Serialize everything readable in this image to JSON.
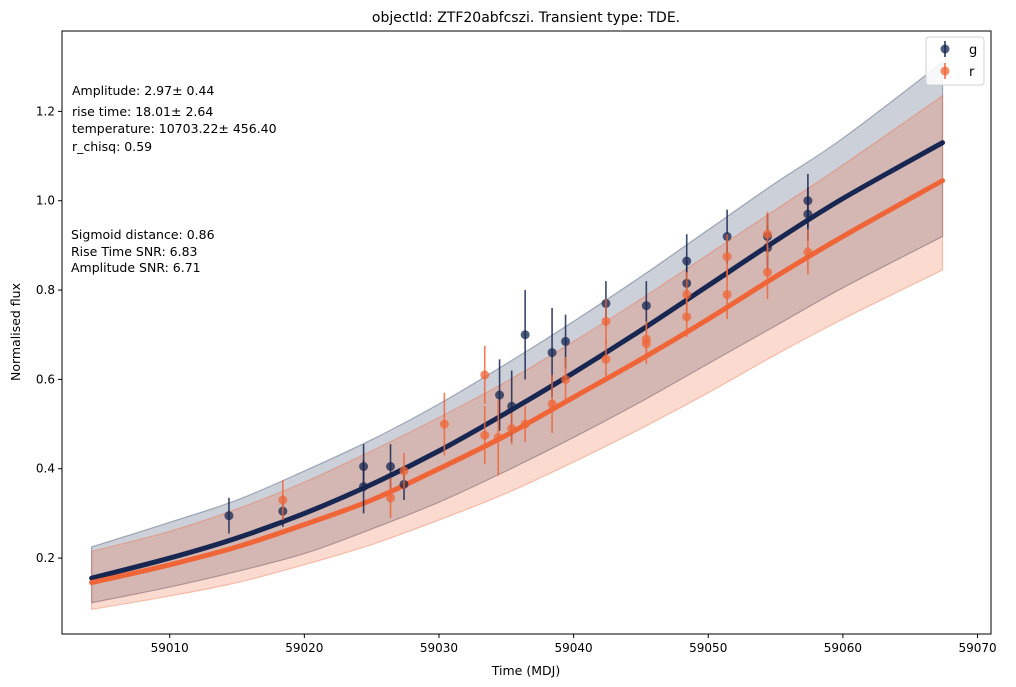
{
  "chart_data": {
    "type": "scatter",
    "title": "objectId: ZTF20abfcszi. Transient type: TDE.",
    "xlabel": "Time (MDJ)",
    "ylabel": "Normalised flux",
    "xlim": [
      59002,
      59071
    ],
    "ylim": [
      0.03,
      1.38
    ],
    "xticks": [
      59010,
      59020,
      59030,
      59040,
      59050,
      59060,
      59070
    ],
    "yticks": [
      0.2,
      0.4,
      0.6,
      0.8,
      1.0,
      1.2
    ],
    "xtick_labels": [
      "59010",
      "59020",
      "59030",
      "59040",
      "59050",
      "59060",
      "59070"
    ],
    "ytick_labels": [
      "0.2",
      "0.4",
      "0.6",
      "0.8",
      "1.0",
      "1.2"
    ],
    "grid": false,
    "legend_position": "top-right",
    "annotations_top": [
      "Amplitude: 2.97± 0.44",
      "rise time: 18.01± 2.64",
      "temperature: 10703.22± 456.40",
      "r_chisq: 0.59"
    ],
    "annotations_mid": [
      "Sigmoid distance: 0.86",
      "Rise Time SNR: 6.83",
      "Amplitude SNR: 6.71"
    ],
    "series": [
      {
        "name": "g",
        "color": "#172751",
        "points": [
          {
            "x": 59014.4,
            "y": 0.295,
            "err": 0.04
          },
          {
            "x": 59018.4,
            "y": 0.305,
            "err": 0.035
          },
          {
            "x": 59024.4,
            "y": 0.405,
            "err": 0.05
          },
          {
            "x": 59024.4,
            "y": 0.36,
            "err": 0.06
          },
          {
            "x": 59026.4,
            "y": 0.405,
            "err": 0.05
          },
          {
            "x": 59027.4,
            "y": 0.365,
            "err": 0.035
          },
          {
            "x": 59034.5,
            "y": 0.565,
            "err": 0.08
          },
          {
            "x": 59035.4,
            "y": 0.54,
            "err": 0.08
          },
          {
            "x": 59036.4,
            "y": 0.7,
            "err": 0.1
          },
          {
            "x": 59038.4,
            "y": 0.66,
            "err": 0.1
          },
          {
            "x": 59039.4,
            "y": 0.685,
            "err": 0.06
          },
          {
            "x": 59042.4,
            "y": 0.77,
            "err": 0.05
          },
          {
            "x": 59045.4,
            "y": 0.765,
            "err": 0.055
          },
          {
            "x": 59048.4,
            "y": 0.865,
            "err": 0.06
          },
          {
            "x": 59048.4,
            "y": 0.815,
            "err": 0.05
          },
          {
            "x": 59051.4,
            "y": 0.92,
            "err": 0.06
          },
          {
            "x": 59054.4,
            "y": 0.92,
            "err": 0.05
          },
          {
            "x": 59054.4,
            "y": 0.895,
            "err": 0.05
          },
          {
            "x": 59057.4,
            "y": 1.0,
            "err": 0.06
          },
          {
            "x": 59057.4,
            "y": 0.97,
            "err": 0.06
          }
        ],
        "fit": {
          "x": [
            59004.2,
            59010,
            59015,
            59020,
            59025,
            59030,
            59035,
            59040,
            59045,
            59050,
            59055,
            59060,
            59067.4
          ],
          "y": [
            0.155,
            0.2,
            0.245,
            0.3,
            0.365,
            0.44,
            0.525,
            0.615,
            0.71,
            0.81,
            0.91,
            1.005,
            1.13
          ],
          "band_upper": [
            0.225,
            0.28,
            0.33,
            0.395,
            0.465,
            0.545,
            0.635,
            0.73,
            0.83,
            0.935,
            1.04,
            1.14,
            1.31
          ],
          "band_lower": [
            0.1,
            0.135,
            0.17,
            0.21,
            0.265,
            0.325,
            0.395,
            0.47,
            0.55,
            0.635,
            0.72,
            0.805,
            0.92
          ]
        }
      },
      {
        "name": "r",
        "color": "#F06537",
        "points": [
          {
            "x": 59018.4,
            "y": 0.33,
            "err": 0.045
          },
          {
            "x": 59026.4,
            "y": 0.335,
            "err": 0.045
          },
          {
            "x": 59027.4,
            "y": 0.395,
            "err": 0.04
          },
          {
            "x": 59030.4,
            "y": 0.5,
            "err": 0.07
          },
          {
            "x": 59033.4,
            "y": 0.61,
            "err": 0.065
          },
          {
            "x": 59033.4,
            "y": 0.475,
            "err": 0.065
          },
          {
            "x": 59034.4,
            "y": 0.47,
            "err": 0.085
          },
          {
            "x": 59035.4,
            "y": 0.49,
            "err": 0.035
          },
          {
            "x": 59036.4,
            "y": 0.5,
            "err": 0.04
          },
          {
            "x": 59038.4,
            "y": 0.545,
            "err": 0.065
          },
          {
            "x": 59039.4,
            "y": 0.6,
            "err": 0.05
          },
          {
            "x": 59042.4,
            "y": 0.73,
            "err": 0.05
          },
          {
            "x": 59042.4,
            "y": 0.645,
            "err": 0.045
          },
          {
            "x": 59045.4,
            "y": 0.68,
            "err": 0.045
          },
          {
            "x": 59045.4,
            "y": 0.69,
            "err": 0.04
          },
          {
            "x": 59048.4,
            "y": 0.79,
            "err": 0.05
          },
          {
            "x": 59048.4,
            "y": 0.74,
            "err": 0.045
          },
          {
            "x": 59051.4,
            "y": 0.875,
            "err": 0.05
          },
          {
            "x": 59051.4,
            "y": 0.79,
            "err": 0.055
          },
          {
            "x": 59054.4,
            "y": 0.925,
            "err": 0.05
          },
          {
            "x": 59054.4,
            "y": 0.84,
            "err": 0.06
          },
          {
            "x": 59057.4,
            "y": 0.885,
            "err": 0.05
          }
        ],
        "fit": {
          "x": [
            59004.2,
            59010,
            59015,
            59020,
            59025,
            59030,
            59035,
            59040,
            59045,
            59050,
            59055,
            59060,
            59067.4
          ],
          "y": [
            0.145,
            0.185,
            0.225,
            0.275,
            0.33,
            0.4,
            0.475,
            0.56,
            0.645,
            0.735,
            0.83,
            0.92,
            1.045
          ],
          "band_upper": [
            0.215,
            0.26,
            0.31,
            0.37,
            0.44,
            0.515,
            0.595,
            0.685,
            0.78,
            0.88,
            0.98,
            1.08,
            1.235
          ],
          "band_lower": [
            0.085,
            0.115,
            0.145,
            0.185,
            0.23,
            0.285,
            0.345,
            0.415,
            0.49,
            0.57,
            0.655,
            0.735,
            0.845
          ]
        }
      }
    ]
  }
}
